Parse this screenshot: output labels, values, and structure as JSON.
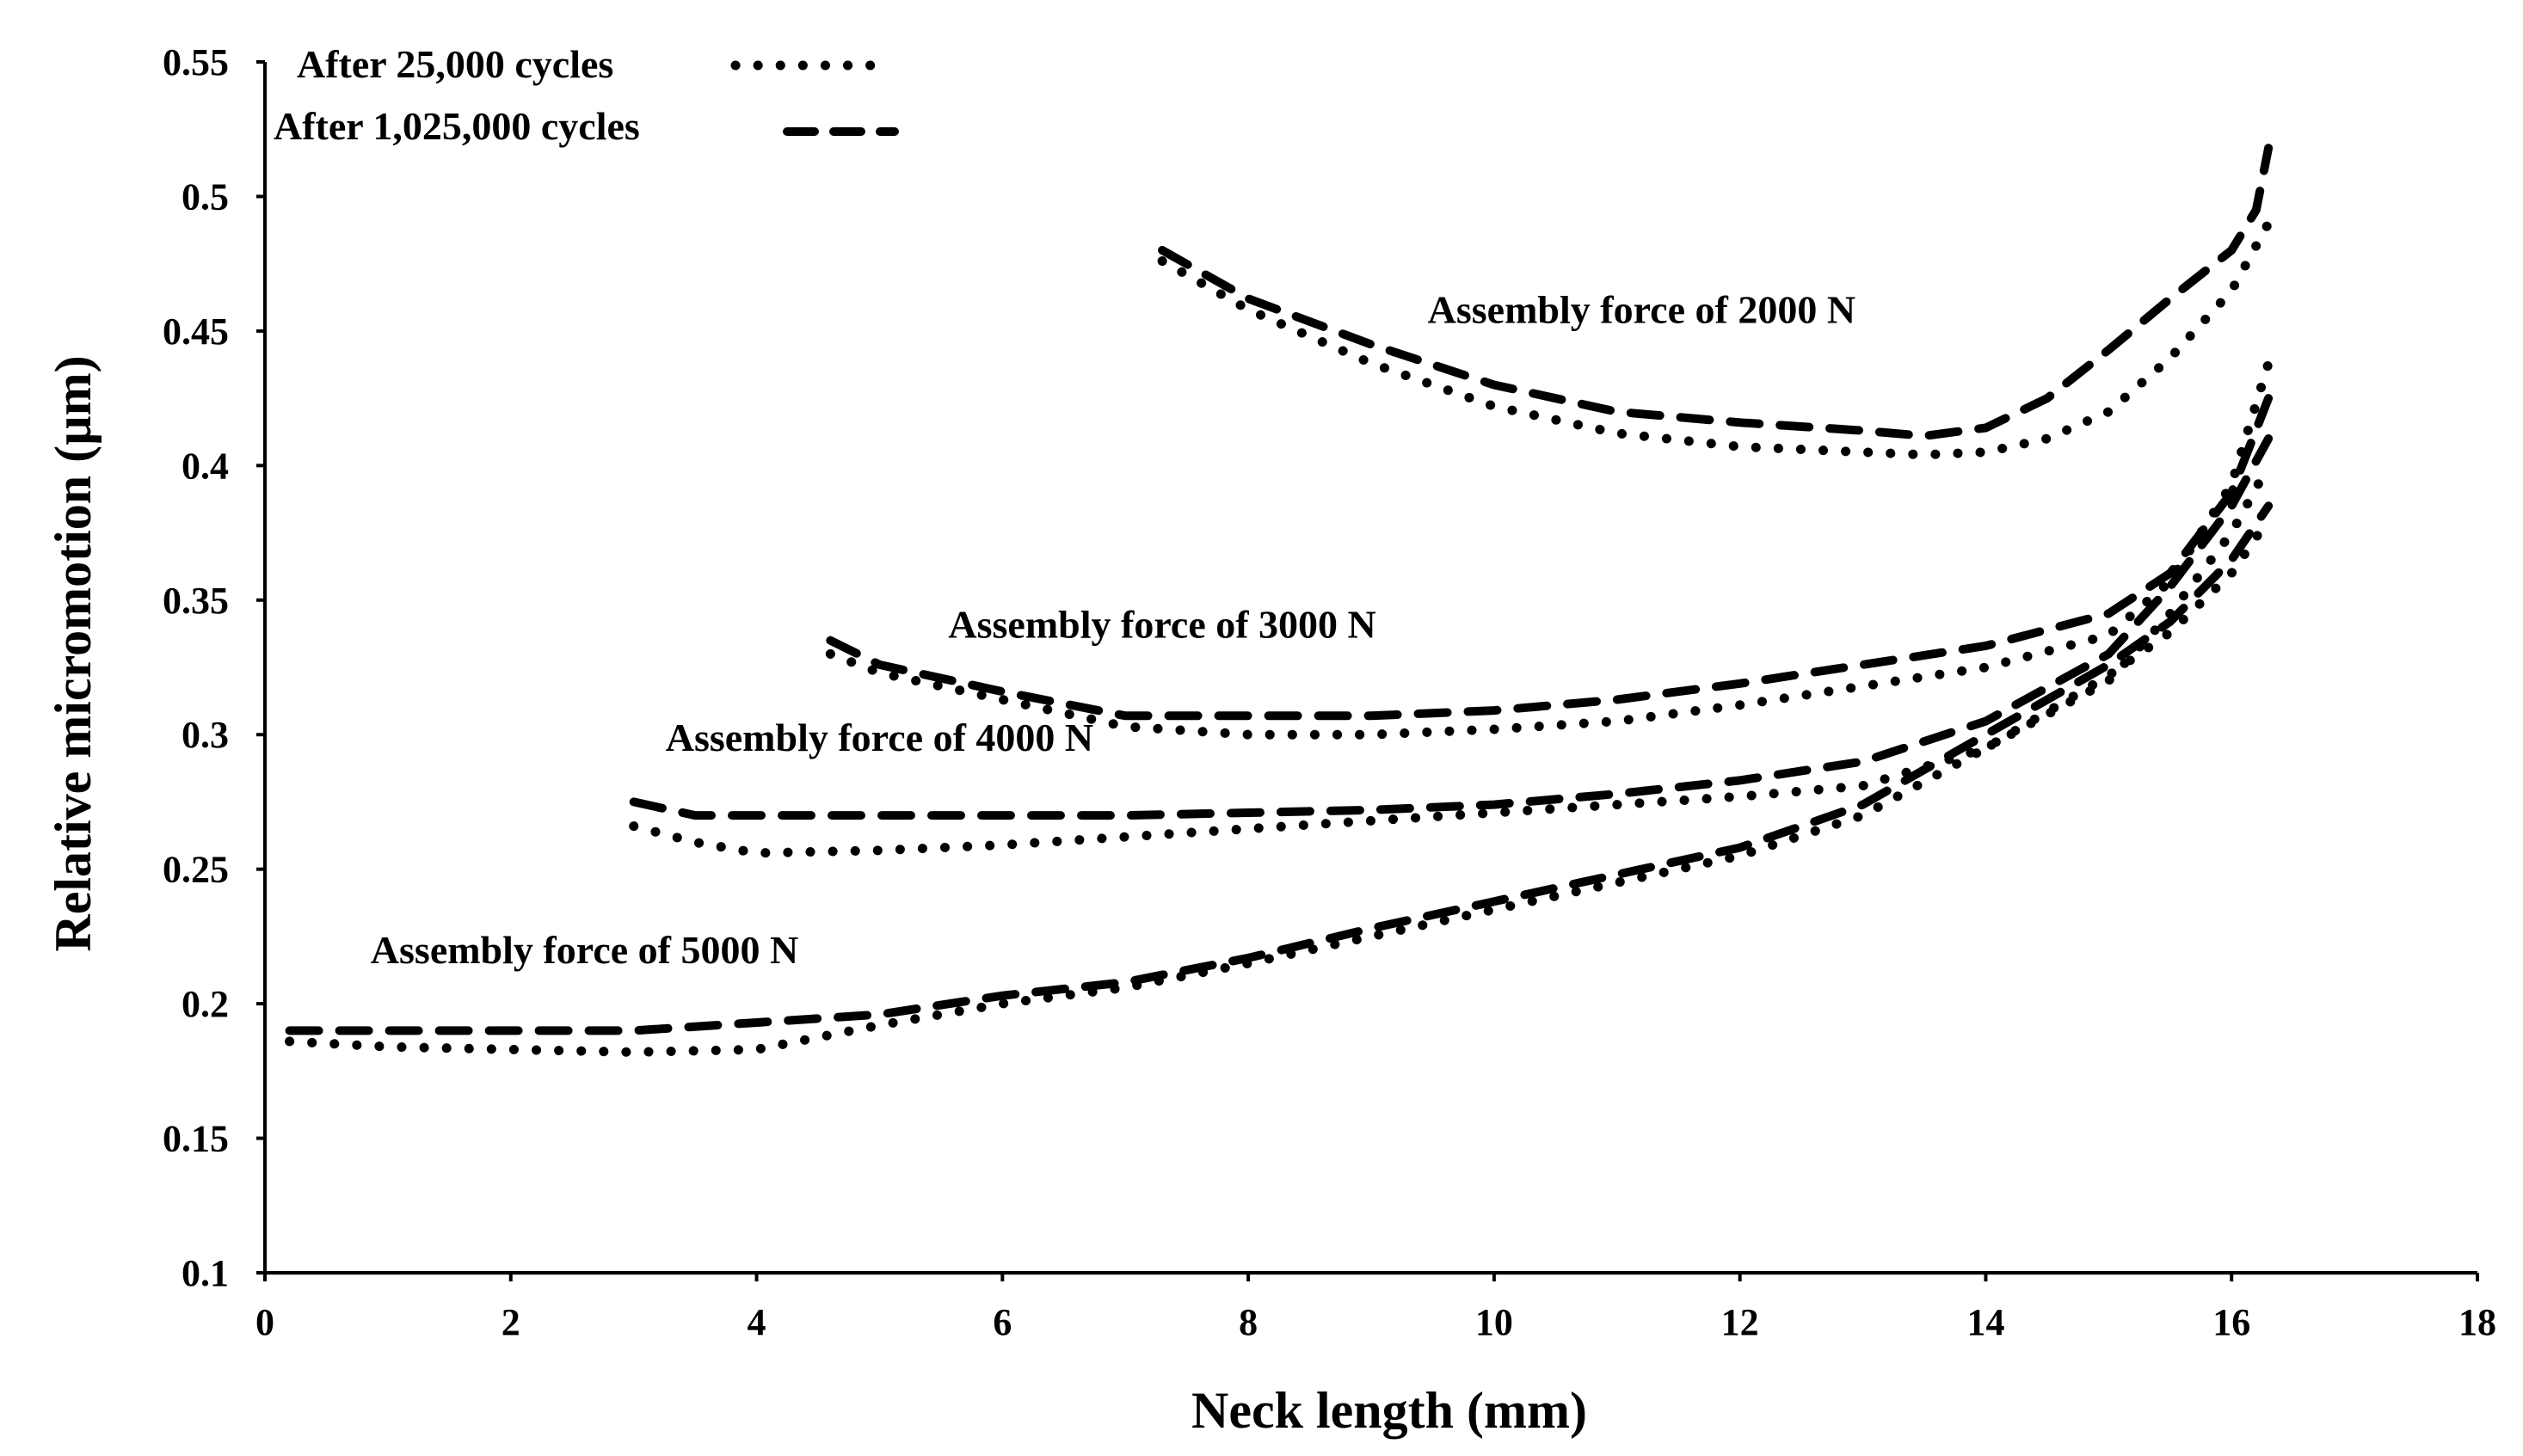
{
  "chart_data": {
    "type": "line",
    "title": "",
    "xlabel": "Neck length (mm)",
    "ylabel": "Relative micromotion  (µm)",
    "xlim": [
      0,
      18
    ],
    "ylim": [
      0.1,
      0.55
    ],
    "xticks": [
      0,
      2,
      4,
      6,
      8,
      10,
      12,
      14,
      16,
      18
    ],
    "xtick_labels": [
      "0",
      "2",
      "4",
      "6",
      "8",
      "10",
      "12",
      "14",
      "16",
      "18"
    ],
    "yticks": [
      0.1,
      0.15,
      0.2,
      0.25,
      0.3,
      0.35,
      0.4,
      0.45,
      0.5,
      0.55
    ],
    "ytick_labels": [
      "0.1",
      "0.15",
      "0.2",
      "0.25",
      "0.3",
      "0.35",
      "0.4",
      "0.45",
      "0.5",
      "0.55"
    ],
    "grid": false,
    "legend_position": "top-left",
    "legend": [
      {
        "label": "After 25,000 cycles",
        "style": "dotted"
      },
      {
        "label": "After 1,025,000 cycles",
        "style": "dashed"
      }
    ],
    "annotations": [
      {
        "text": "Assembly force of 2000 N",
        "x": 11.2,
        "y": 0.453
      },
      {
        "text": "Assembly force of 3000 N",
        "x": 7.3,
        "y": 0.336
      },
      {
        "text": "Assembly force of 4000 N",
        "x": 5.0,
        "y": 0.294
      },
      {
        "text": "Assembly force of 5000 N",
        "x": 2.6,
        "y": 0.215
      }
    ],
    "series": [
      {
        "name": "Assembly force of 2000 N",
        "condition": "After 25,000 cycles",
        "style": "dotted",
        "x": [
          7.3,
          8,
          9,
          10,
          11,
          12,
          13,
          13.5,
          14,
          14.5,
          15,
          15.5,
          16,
          16.3
        ],
        "y": [
          0.476,
          0.458,
          0.438,
          0.422,
          0.412,
          0.407,
          0.405,
          0.404,
          0.405,
          0.41,
          0.42,
          0.44,
          0.465,
          0.49
        ]
      },
      {
        "name": "Assembly force of 2000 N",
        "condition": "After 1,025,000 cycles",
        "style": "dashed",
        "x": [
          7.3,
          8,
          9,
          10,
          11,
          12,
          13,
          13.5,
          14,
          14.5,
          15,
          15.5,
          16,
          16.2,
          16.3
        ],
        "y": [
          0.48,
          0.462,
          0.445,
          0.43,
          0.42,
          0.416,
          0.413,
          0.411,
          0.414,
          0.425,
          0.443,
          0.462,
          0.48,
          0.495,
          0.518
        ]
      },
      {
        "name": "Assembly force of 3000 N",
        "condition": "After 25,000 cycles",
        "style": "dotted",
        "x": [
          4.6,
          5,
          6,
          7,
          8,
          9,
          10,
          11,
          12,
          13,
          14,
          15,
          15.5,
          16,
          16.3
        ],
        "y": [
          0.33,
          0.323,
          0.313,
          0.303,
          0.3,
          0.3,
          0.302,
          0.305,
          0.311,
          0.318,
          0.325,
          0.337,
          0.357,
          0.393,
          0.438
        ]
      },
      {
        "name": "Assembly force of 3000 N",
        "condition": "After 1,025,000 cycles",
        "style": "dashed",
        "x": [
          4.6,
          5,
          6,
          7,
          8,
          9,
          10,
          11,
          12,
          13,
          14,
          15,
          15.5,
          16,
          16.3
        ],
        "y": [
          0.335,
          0.326,
          0.316,
          0.307,
          0.307,
          0.307,
          0.309,
          0.313,
          0.319,
          0.326,
          0.333,
          0.345,
          0.36,
          0.39,
          0.425
        ]
      },
      {
        "name": "Assembly force of 4000 N",
        "condition": "After 25,000 cycles",
        "style": "dotted",
        "x": [
          3.0,
          3.5,
          4,
          5,
          6,
          7,
          8,
          9,
          10,
          11,
          12,
          13,
          14,
          15,
          15.5,
          16,
          16.3
        ],
        "y": [
          0.266,
          0.26,
          0.256,
          0.257,
          0.259,
          0.262,
          0.265,
          0.268,
          0.271,
          0.274,
          0.277,
          0.281,
          0.295,
          0.32,
          0.345,
          0.375,
          0.4
        ]
      },
      {
        "name": "Assembly force of 4000 N",
        "condition": "After 1,025,000 cycles",
        "style": "dashed",
        "x": [
          3.0,
          3.5,
          4,
          5,
          6,
          7,
          8,
          9,
          10,
          11,
          12,
          13,
          14,
          15,
          15.5,
          16,
          16.3
        ],
        "y": [
          0.275,
          0.27,
          0.27,
          0.27,
          0.27,
          0.27,
          0.271,
          0.272,
          0.274,
          0.278,
          0.283,
          0.29,
          0.305,
          0.33,
          0.355,
          0.385,
          0.41
        ]
      },
      {
        "name": "Assembly force of 5000 N",
        "condition": "After 25,000 cycles",
        "style": "dotted",
        "x": [
          0.2,
          1,
          2,
          3,
          4,
          5,
          6,
          7,
          8,
          9,
          10,
          11,
          12,
          13,
          14,
          15,
          15.5,
          16,
          16.3
        ],
        "y": [
          0.186,
          0.184,
          0.183,
          0.182,
          0.183,
          0.192,
          0.2,
          0.206,
          0.215,
          0.225,
          0.235,
          0.245,
          0.255,
          0.27,
          0.295,
          0.322,
          0.338,
          0.36,
          0.38
        ]
      },
      {
        "name": "Assembly force of 5000 N",
        "condition": "After 1,025,000 cycles",
        "style": "dashed",
        "x": [
          0.2,
          1,
          2,
          3,
          4,
          5,
          6,
          7,
          8,
          9,
          10,
          11,
          12,
          13,
          14,
          15,
          15.5,
          16,
          16.3
        ],
        "y": [
          0.19,
          0.19,
          0.19,
          0.19,
          0.193,
          0.196,
          0.203,
          0.208,
          0.217,
          0.228,
          0.238,
          0.248,
          0.258,
          0.274,
          0.3,
          0.326,
          0.342,
          0.365,
          0.385
        ]
      }
    ]
  }
}
